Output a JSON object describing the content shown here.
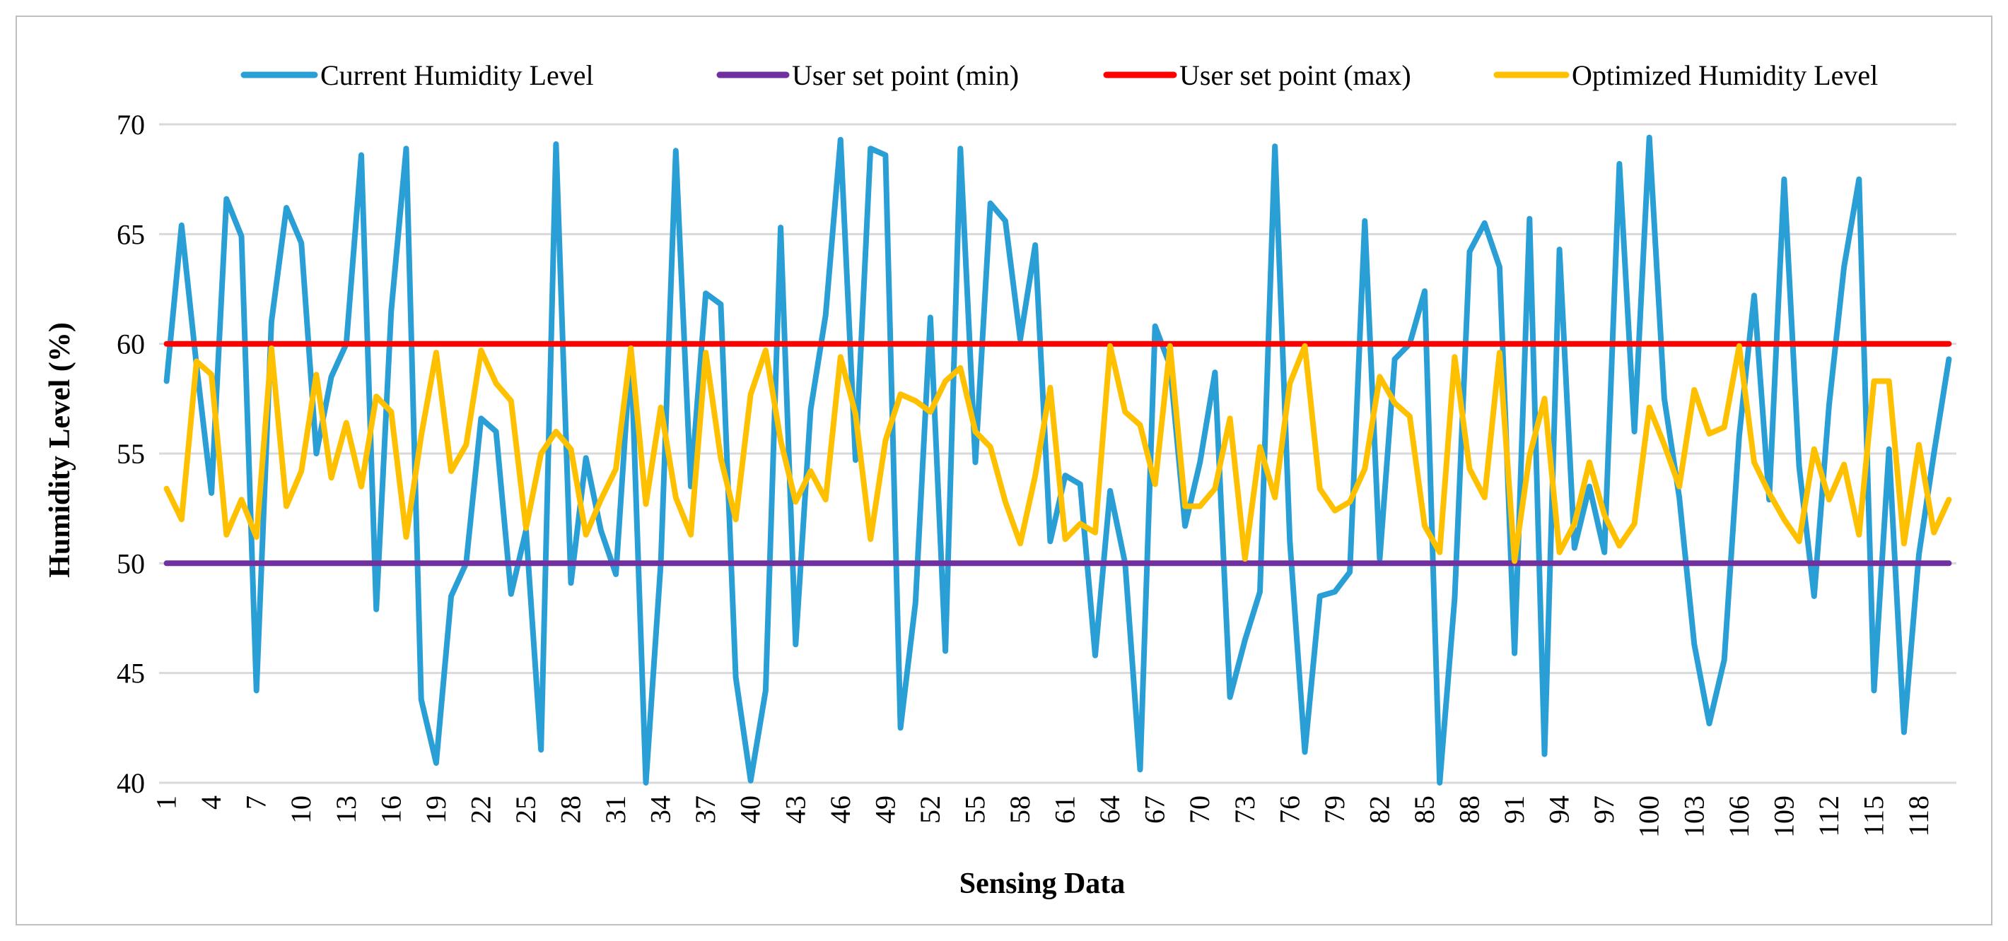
{
  "chart_data": {
    "type": "line",
    "title": "",
    "xlabel": "Sensing Data",
    "ylabel": "Humidity  Level (%)",
    "ylim": [
      40,
      70
    ],
    "yticks": [
      40,
      45,
      50,
      55,
      60,
      65,
      70
    ],
    "x_start": 1,
    "x_end": 120,
    "x_tick_step": 3,
    "series": [
      {
        "name": "Current Humidity Level",
        "color": "#2a9fd6",
        "values": [
          58.3,
          65.4,
          59.0,
          53.2,
          66.6,
          64.9,
          44.2,
          61.0,
          66.2,
          64.6,
          55.0,
          58.5,
          60.0,
          68.6,
          47.9,
          61.5,
          68.9,
          43.8,
          40.9,
          48.5,
          50.0,
          56.6,
          56.0,
          48.6,
          51.5,
          41.5,
          69.1,
          49.1,
          54.8,
          51.5,
          49.5,
          59.8,
          40.0,
          50.0,
          68.8,
          53.5,
          62.3,
          61.8,
          44.8,
          40.1,
          44.2,
          65.3,
          46.3,
          57.0,
          61.3,
          69.3,
          54.7,
          68.9,
          68.6,
          42.5,
          48.2,
          61.2,
          46.0,
          68.9,
          54.6,
          66.4,
          65.6,
          60.2,
          64.5,
          51.0,
          54.0,
          53.6,
          45.8,
          53.3,
          50.0,
          40.6,
          60.8,
          59.0,
          51.7,
          54.6,
          58.7,
          43.9,
          46.5,
          48.7,
          69.0,
          51.0,
          41.4,
          48.5,
          48.7,
          49.6,
          65.6,
          50.2,
          59.3,
          60.0,
          62.4,
          40.0,
          48.4,
          64.2,
          65.5,
          63.5,
          45.9,
          65.7,
          41.3,
          64.3,
          50.7,
          53.5,
          50.5,
          68.2,
          56.0,
          69.4,
          57.5,
          53.0,
          46.3,
          42.7,
          45.6,
          55.8,
          62.2,
          52.9,
          67.5,
          54.4,
          48.5,
          57.2,
          63.5,
          67.5,
          44.2,
          55.2,
          42.3,
          50.4,
          55.0,
          59.3
        ]
      },
      {
        "name": "User set point (min)",
        "color": "#7030a0",
        "values": [
          50,
          50,
          50,
          50,
          50,
          50,
          50,
          50,
          50,
          50,
          50,
          50,
          50,
          50,
          50,
          50,
          50,
          50,
          50,
          50,
          50,
          50,
          50,
          50,
          50,
          50,
          50,
          50,
          50,
          50,
          50,
          50,
          50,
          50,
          50,
          50,
          50,
          50,
          50,
          50,
          50,
          50,
          50,
          50,
          50,
          50,
          50,
          50,
          50,
          50,
          50,
          50,
          50,
          50,
          50,
          50,
          50,
          50,
          50,
          50,
          50,
          50,
          50,
          50,
          50,
          50,
          50,
          50,
          50,
          50,
          50,
          50,
          50,
          50,
          50,
          50,
          50,
          50,
          50,
          50,
          50,
          50,
          50,
          50,
          50,
          50,
          50,
          50,
          50,
          50,
          50,
          50,
          50,
          50,
          50,
          50,
          50,
          50,
          50,
          50,
          50,
          50,
          50,
          50,
          50,
          50,
          50,
          50,
          50,
          50,
          50,
          50,
          50,
          50,
          50,
          50,
          50,
          50,
          50,
          50
        ]
      },
      {
        "name": "User set point (max)",
        "color": "#ff0000",
        "values": [
          60,
          60,
          60,
          60,
          60,
          60,
          60,
          60,
          60,
          60,
          60,
          60,
          60,
          60,
          60,
          60,
          60,
          60,
          60,
          60,
          60,
          60,
          60,
          60,
          60,
          60,
          60,
          60,
          60,
          60,
          60,
          60,
          60,
          60,
          60,
          60,
          60,
          60,
          60,
          60,
          60,
          60,
          60,
          60,
          60,
          60,
          60,
          60,
          60,
          60,
          60,
          60,
          60,
          60,
          60,
          60,
          60,
          60,
          60,
          60,
          60,
          60,
          60,
          60,
          60,
          60,
          60,
          60,
          60,
          60,
          60,
          60,
          60,
          60,
          60,
          60,
          60,
          60,
          60,
          60,
          60,
          60,
          60,
          60,
          60,
          60,
          60,
          60,
          60,
          60,
          60,
          60,
          60,
          60,
          60,
          60,
          60,
          60,
          60,
          60,
          60,
          60,
          60,
          60,
          60,
          60,
          60,
          60,
          60,
          60,
          60,
          60,
          60,
          60,
          60,
          60,
          60,
          60,
          60,
          60
        ]
      },
      {
        "name": "Optimized Humidity Level",
        "color": "#ffc000",
        "values": [
          53.4,
          52.0,
          59.2,
          58.6,
          51.3,
          52.9,
          51.2,
          59.8,
          52.6,
          54.2,
          58.6,
          53.9,
          56.4,
          53.5,
          57.6,
          56.9,
          51.2,
          55.8,
          59.6,
          54.2,
          55.4,
          59.7,
          58.2,
          57.4,
          51.6,
          55.0,
          56.0,
          55.2,
          51.3,
          52.9,
          54.3,
          59.8,
          52.7,
          57.1,
          53.0,
          51.3,
          59.6,
          54.8,
          52.0,
          57.7,
          59.7,
          55.6,
          52.8,
          54.2,
          52.9,
          59.4,
          56.8,
          51.1,
          55.6,
          57.7,
          57.4,
          56.9,
          58.3,
          58.9,
          56.0,
          55.3,
          52.8,
          50.9,
          54.0,
          58.0,
          51.1,
          51.8,
          51.4,
          59.9,
          56.9,
          56.3,
          53.6,
          59.9,
          52.6,
          52.6,
          53.4,
          56.6,
          50.2,
          55.3,
          53.0,
          58.2,
          59.9,
          53.4,
          52.4,
          52.8,
          54.3,
          58.5,
          57.3,
          56.7,
          51.7,
          50.5,
          59.4,
          54.3,
          53.0,
          59.6,
          50.1,
          54.9,
          57.5,
          50.5,
          51.8,
          54.6,
          52.2,
          50.8,
          51.8,
          57.1,
          55.4,
          53.5,
          57.9,
          55.9,
          56.2,
          59.9,
          54.6,
          53.2,
          52.0,
          51.0,
          55.2,
          52.9,
          54.5,
          51.3,
          58.3,
          58.3,
          50.9,
          55.4,
          51.4,
          52.9
        ]
      }
    ]
  }
}
